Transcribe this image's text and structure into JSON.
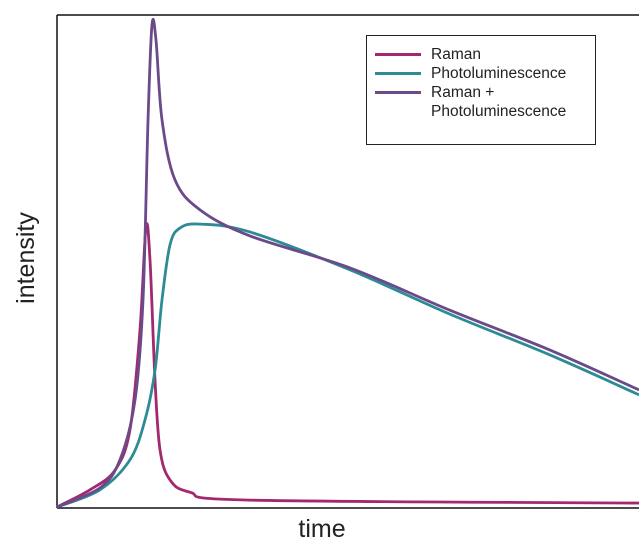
{
  "chart_data": {
    "type": "line",
    "x_label": "time",
    "y_label": "intensity",
    "xlim": [
      0,
      100
    ],
    "ylim": [
      0,
      100
    ],
    "series": [
      {
        "name": "Raman",
        "color": "#a3286f",
        "x": [
          0,
          5.67,
          9.97,
          12.54,
          14.26,
          15.29,
          15.98,
          16.84,
          17.7,
          19.42,
          22.85,
          33.16,
          100
        ],
        "values": [
          0,
          3.5,
          7.5,
          15.7,
          36,
          56.9,
          50.2,
          25.8,
          11.6,
          5.5,
          3,
          1.4,
          0.8
        ]
      },
      {
        "name": "Photoluminescence",
        "color": "#2e8b95",
        "x": [
          0,
          7.39,
          12.54,
          15.12,
          16.84,
          18.04,
          19.42,
          21.13,
          24.57,
          33.16,
          50.34,
          67.5,
          84.7,
          100
        ],
        "values": [
          0,
          3.5,
          9.6,
          17.7,
          27.8,
          42.1,
          53.3,
          56.7,
          57.5,
          55.9,
          48.2,
          39.2,
          30.9,
          22.8
        ]
      },
      {
        "name": "Raman + Photoluminescence",
        "color": "#6b4a8a",
        "x": [
          0,
          7.39,
          10.82,
          13.4,
          14.78,
          15.64,
          16.32,
          17.01,
          18.04,
          20.27,
          24.57,
          33.16,
          50.34,
          67.5,
          84.7,
          100
        ],
        "values": [
          0,
          3.9,
          9.6,
          21.7,
          42.1,
          78.7,
          98,
          94.9,
          78.7,
          66.5,
          60.4,
          55.1,
          48.6,
          40,
          31.9,
          23.8
        ]
      }
    ]
  }
}
